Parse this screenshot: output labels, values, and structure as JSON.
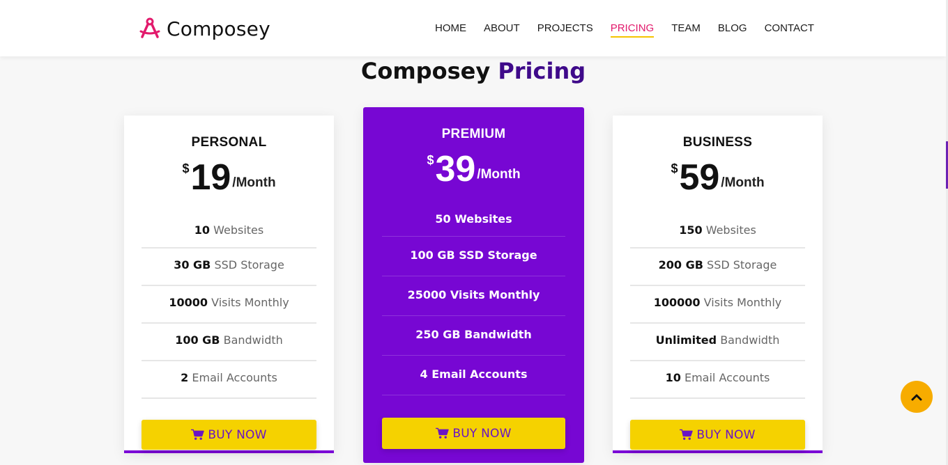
{
  "brand": {
    "name": "Composey"
  },
  "nav": {
    "items": [
      {
        "label": "HOME"
      },
      {
        "label": "ABOUT"
      },
      {
        "label": "PROJECTS"
      },
      {
        "label": "PRICING",
        "active": true
      },
      {
        "label": "TEAM"
      },
      {
        "label": "BLOG"
      },
      {
        "label": "CONTACT"
      }
    ]
  },
  "section": {
    "title_prefix": "Composey",
    "title_accent": "Pricing"
  },
  "plans": [
    {
      "name": "PERSONAL",
      "currency": "$",
      "amount": "19",
      "period": "/Month",
      "features": [
        {
          "value": "10",
          "label": "Websites"
        },
        {
          "value": "30 GB",
          "label": "SSD Storage"
        },
        {
          "value": "10000",
          "label": "Visits Monthly"
        },
        {
          "value": "100 GB",
          "label": "Bandwidth"
        },
        {
          "value": "2",
          "label": "Email Accounts"
        }
      ],
      "button": "BUY NOW"
    },
    {
      "name": "PREMIUM",
      "currency": "$",
      "amount": "39",
      "period": "/Month",
      "features": [
        {
          "value": "50",
          "label": "Websites"
        },
        {
          "value": "100 GB",
          "label": "SSD Storage"
        },
        {
          "value": "25000",
          "label": "Visits Monthly"
        },
        {
          "value": "250 GB",
          "label": "Bandwidth"
        },
        {
          "value": "4",
          "label": "Email Accounts"
        }
      ],
      "button": "BUY NOW"
    },
    {
      "name": "BUSINESS",
      "currency": "$",
      "amount": "59",
      "period": "/Month",
      "features": [
        {
          "value": "150",
          "label": "Websites"
        },
        {
          "value": "200 GB",
          "label": "SSD Storage"
        },
        {
          "value": "100000",
          "label": "Visits Monthly"
        },
        {
          "value": "Unlimited",
          "label": "Bandwidth"
        },
        {
          "value": "10",
          "label": "Email Accounts"
        }
      ],
      "button": "BUY NOW"
    }
  ],
  "colors": {
    "accent_purple": "#7707d3",
    "title_accent": "#3f0a8a",
    "nav_active": "#e21a6c",
    "button_yellow": "#f5d200",
    "back_to_top": "#f7ac00"
  },
  "icons": {
    "logo": "compass-logo-icon",
    "cart": "shopping-cart-icon",
    "back_to_top": "chevron-up-icon"
  }
}
